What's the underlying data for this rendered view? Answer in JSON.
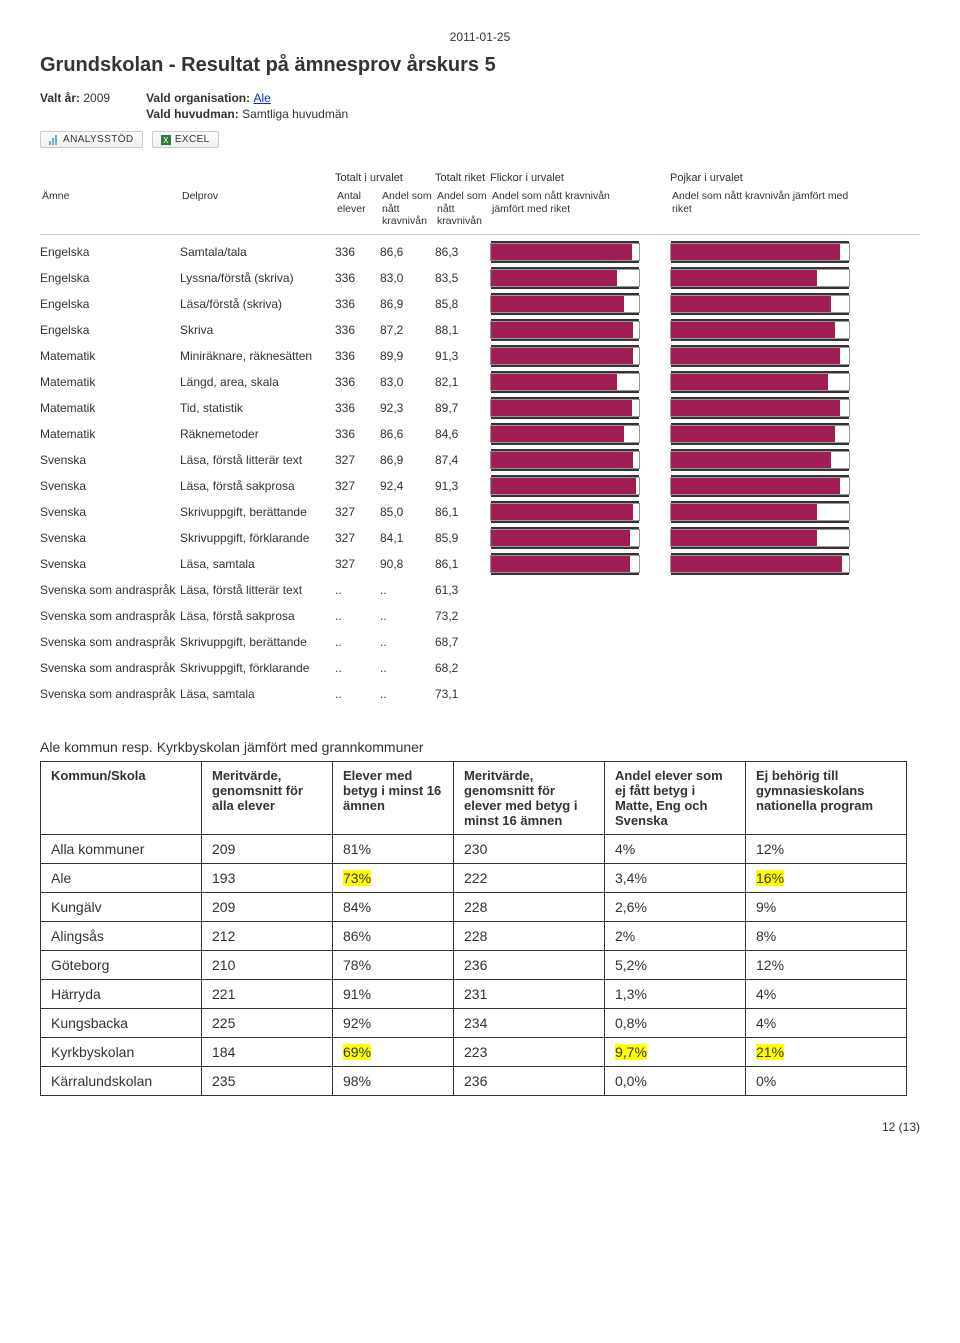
{
  "page": {
    "date": "2011-01-25",
    "footer": "12 (13)"
  },
  "header": {
    "title": "Grundskolan - Resultat på ämnesprov årskurs 5",
    "year_label": "Valt år:",
    "year_value": "2009",
    "org_label": "Vald organisation:",
    "org_value": "Ale",
    "huvudman_label": "Vald huvudman:",
    "huvudman_value": "Samtliga huvudmän",
    "btn_analys": "ANALYSSTÖD",
    "btn_excel": "EXCEL"
  },
  "provider": {
    "group_totalt_urvalet": "Totalt i urvalet",
    "group_totalt_riket": "Totalt riket",
    "group_flickor": "Flickor i urvalet",
    "group_pojkar": "Pojkar i urvalet",
    "col_amne": "Ämne",
    "col_delprov": "Delprov",
    "col_antal": "Antal elever",
    "col_andel_urval": "Andel som nått kravnivån",
    "col_andel_riket": "Andel som nått kravnivån",
    "col_bar_flickor": "Andel som nått kravnivån jämfört med riket",
    "col_bar_pojkar": "Andel som nått kravnivån jämfört med riket",
    "rows": [
      {
        "amne": "Engelska",
        "delprov": "Samtala/tala",
        "antal": "336",
        "andel_u": "86,6",
        "andel_r": "86,3",
        "bar_f": 95,
        "bar_p": 95
      },
      {
        "amne": "Engelska",
        "delprov": "Lyssna/förstå (skriva)",
        "antal": "336",
        "andel_u": "83,0",
        "andel_r": "83,5",
        "bar_f": 85,
        "bar_p": 82
      },
      {
        "amne": "Engelska",
        "delprov": "Läsa/förstå (skriva)",
        "antal": "336",
        "andel_u": "86,9",
        "andel_r": "85,8",
        "bar_f": 90,
        "bar_p": 90
      },
      {
        "amne": "Engelska",
        "delprov": "Skriva",
        "antal": "336",
        "andel_u": "87,2",
        "andel_r": "88,1",
        "bar_f": 96,
        "bar_p": 92
      },
      {
        "amne": "Matematik",
        "delprov": "Miniräknare, räknesätten",
        "antal": "336",
        "andel_u": "89,9",
        "andel_r": "91,3",
        "bar_f": 96,
        "bar_p": 95
      },
      {
        "amne": "Matematik",
        "delprov": "Längd, area, skala",
        "antal": "336",
        "andel_u": "83,0",
        "andel_r": "82,1",
        "bar_f": 85,
        "bar_p": 88
      },
      {
        "amne": "Matematik",
        "delprov": "Tid, statistik",
        "antal": "336",
        "andel_u": "92,3",
        "andel_r": "89,7",
        "bar_f": 95,
        "bar_p": 95
      },
      {
        "amne": "Matematik",
        "delprov": "Räknemetoder",
        "antal": "336",
        "andel_u": "86,6",
        "andel_r": "84,6",
        "bar_f": 90,
        "bar_p": 92
      },
      {
        "amne": "Svenska",
        "delprov": "Läsa, förstå litterär text",
        "antal": "327",
        "andel_u": "86,9",
        "andel_r": "87,4",
        "bar_f": 96,
        "bar_p": 90
      },
      {
        "amne": "Svenska",
        "delprov": "Läsa, förstå sakprosa",
        "antal": "327",
        "andel_u": "92,4",
        "andel_r": "91,3",
        "bar_f": 98,
        "bar_p": 95
      },
      {
        "amne": "Svenska",
        "delprov": "Skrivuppgift, berättande",
        "antal": "327",
        "andel_u": "85,0",
        "andel_r": "86,1",
        "bar_f": 96,
        "bar_p": 82
      },
      {
        "amne": "Svenska",
        "delprov": "Skrivuppgift, förklarande",
        "antal": "327",
        "andel_u": "84,1",
        "andel_r": "85,9",
        "bar_f": 94,
        "bar_p": 82
      },
      {
        "amne": "Svenska",
        "delprov": "Läsa, samtala",
        "antal": "327",
        "andel_u": "90,8",
        "andel_r": "86,1",
        "bar_f": 94,
        "bar_p": 96
      },
      {
        "amne": "Svenska som andraspråk",
        "delprov": "Läsa, förstå litterär text",
        "antal": "..",
        "andel_u": "..",
        "andel_r": "61,3",
        "bar_f": null,
        "bar_p": null
      },
      {
        "amne": "Svenska som andraspråk",
        "delprov": "Läsa, förstå sakprosa",
        "antal": "..",
        "andel_u": "..",
        "andel_r": "73,2",
        "bar_f": null,
        "bar_p": null
      },
      {
        "amne": "Svenska som andraspråk",
        "delprov": "Skrivuppgift, berättande",
        "antal": "..",
        "andel_u": "..",
        "andel_r": "68,7",
        "bar_f": null,
        "bar_p": null
      },
      {
        "amne": "Svenska som andraspråk",
        "delprov": "Skrivuppgift, förklarande",
        "antal": "..",
        "andel_u": "..",
        "andel_r": "68,2",
        "bar_f": null,
        "bar_p": null
      },
      {
        "amne": "Svenska som andraspråk",
        "delprov": "Läsa, samtala",
        "antal": "..",
        "andel_u": "..",
        "andel_r": "73,1",
        "bar_f": null,
        "bar_p": null
      }
    ],
    "bar_color": "#a01e53"
  },
  "comparison": {
    "intro": "Ale kommun resp. Kyrkbyskolan jämfört med grannkommuner",
    "columns": [
      "Kommun/Skola",
      "Meritvärde, genomsnitt för alla elever",
      "Elever med betyg i minst 16 ämnen",
      "Meritvärde, genomsnitt för elever med betyg i minst 16 ämnen",
      "Andel elever som ej fått betyg i Matte, Eng och Svenska",
      "Ej behörig till gymnasieskolans nationella program"
    ],
    "rows": [
      {
        "name": "Alla kommuner",
        "merit": "209",
        "elever16": "81%",
        "merit16": "230",
        "ejbetyg": "4%",
        "ejbeh": "12%"
      },
      {
        "name": "Ale",
        "merit": "193",
        "elever16": "73%",
        "merit16": "222",
        "ejbetyg": "3,4%",
        "ejbeh": "16%",
        "hl": [
          "elever16",
          "ejbeh"
        ]
      },
      {
        "name": "Kungälv",
        "merit": "209",
        "elever16": "84%",
        "merit16": "228",
        "ejbetyg": "2,6%",
        "ejbeh": "9%"
      },
      {
        "name": "Alingsås",
        "merit": "212",
        "elever16": "86%",
        "merit16": "228",
        "ejbetyg": "2%",
        "ejbeh": "8%"
      },
      {
        "name": "Göteborg",
        "merit": "210",
        "elever16": "78%",
        "merit16": "236",
        "ejbetyg": "5,2%",
        "ejbeh": "12%"
      },
      {
        "name": "Härryda",
        "merit": "221",
        "elever16": "91%",
        "merit16": "231",
        "ejbetyg": "1,3%",
        "ejbeh": "4%"
      },
      {
        "name": "Kungsbacka",
        "merit": "225",
        "elever16": "92%",
        "merit16": "234",
        "ejbetyg": "0,8%",
        "ejbeh": "4%"
      },
      {
        "name": "Kyrkbyskolan",
        "merit": "184",
        "elever16": "69%",
        "merit16": "223",
        "ejbetyg": "9,7%",
        "ejbeh": "21%",
        "hl": [
          "elever16",
          "ejbetyg",
          "ejbeh"
        ]
      },
      {
        "name": "Kärralundskolan",
        "merit": "235",
        "elever16": "98%",
        "merit16": "236",
        "ejbetyg": "0,0%",
        "ejbeh": "0%"
      }
    ]
  }
}
